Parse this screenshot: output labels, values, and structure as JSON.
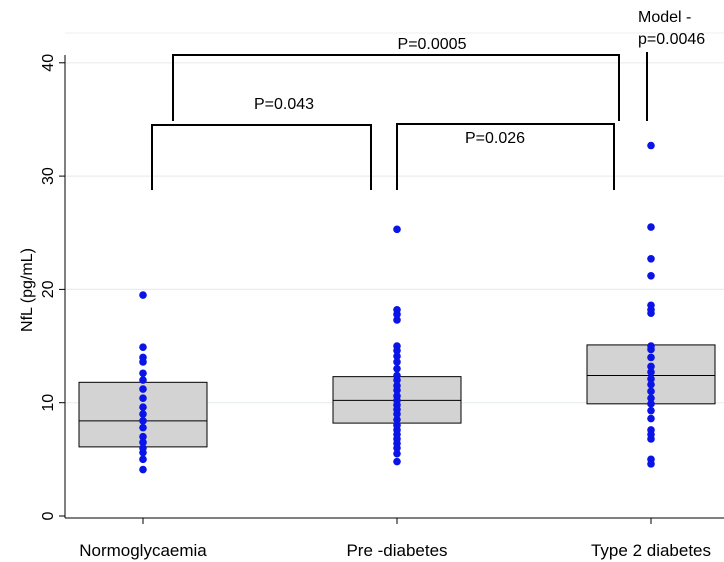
{
  "chart_data": {
    "type": "box",
    "ylabel": "NfL (pg/mL)",
    "ylim": [
      0,
      40
    ],
    "yticks": [
      0,
      10,
      20,
      30,
      40
    ],
    "grid": true,
    "categories": [
      "Normoglycaemia",
      "Pre -diabetes",
      "Type 2 diabetes"
    ],
    "boxes": [
      {
        "q1": 6.1,
        "median": 8.4,
        "q3": 11.8
      },
      {
        "q1": 8.2,
        "median": 10.2,
        "q3": 12.3
      },
      {
        "q1": 9.9,
        "median": 12.4,
        "q3": 15.1
      }
    ],
    "points": [
      [
        19.5,
        14.9,
        14.0,
        13.6,
        12.6,
        12.0,
        11.2,
        10.4,
        9.6,
        9.0,
        8.4,
        7.8,
        7.0,
        6.5,
        6.0,
        5.6,
        5.0,
        4.1
      ],
      [
        25.3,
        18.2,
        17.8,
        17.3,
        15.0,
        14.6,
        14.1,
        13.6,
        13.0,
        12.4,
        12.0,
        11.5,
        11.1,
        10.6,
        10.2,
        9.8,
        9.4,
        9.0,
        8.5,
        8.0,
        7.6,
        7.2,
        6.8,
        6.4,
        6.0,
        5.5,
        4.8
      ],
      [
        32.7,
        25.5,
        22.7,
        21.2,
        18.6,
        18.2,
        17.9,
        15.0,
        14.7,
        14.0,
        13.2,
        12.7,
        12.1,
        11.6,
        11.0,
        10.4,
        9.9,
        9.3,
        8.6,
        7.6,
        7.2,
        6.8,
        5.0,
        4.6
      ]
    ],
    "point_color": "#0a14e6",
    "box_fill": "#d3d3d3",
    "brackets": [
      {
        "from": 0,
        "to": 2,
        "label": "P=0.0005"
      },
      {
        "from": 0,
        "to": 1,
        "label": "P=0.043"
      },
      {
        "from": 1,
        "to": 2,
        "label": "P=0.026"
      }
    ],
    "annotation": [
      "Model -",
      "p=0.0046"
    ]
  }
}
